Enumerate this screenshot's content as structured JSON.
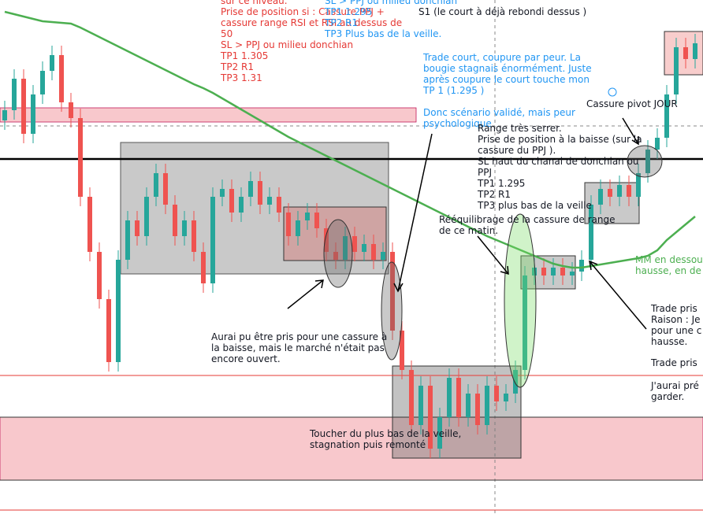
{
  "chart_data": {
    "type": "candlestick",
    "ylim": [
      0,
      653
    ],
    "open": [
      500,
      513,
      553,
      483,
      533,
      563,
      583,
      523,
      503,
      403,
      333,
      273,
      193,
      323,
      373,
      353,
      403,
      433,
      393,
      353,
      373,
      333,
      293,
      403,
      413,
      383,
      403,
      423,
      393,
      403,
      383,
      353,
      373,
      383,
      363,
      333,
      323,
      353,
      333,
      343,
      323,
      333,
      233,
      183,
      113,
      163,
      83,
      123,
      173,
      123,
      153,
      113,
      163,
      143,
      153,
      183,
      303,
      313,
      303,
      313,
      303,
      308,
      323,
      393,
      413,
      403,
      418,
      403,
      433,
      463,
      478,
      533,
      593,
      578
    ],
    "high": [
      525,
      565,
      565,
      545,
      575,
      595,
      595,
      535,
      515,
      415,
      345,
      285,
      335,
      385,
      385,
      415,
      445,
      445,
      405,
      385,
      385,
      345,
      415,
      425,
      425,
      415,
      435,
      435,
      415,
      415,
      395,
      385,
      395,
      395,
      375,
      345,
      365,
      365,
      355,
      355,
      345,
      345,
      245,
      195,
      175,
      175,
      135,
      185,
      185,
      165,
      165,
      175,
      175,
      165,
      195,
      315,
      325,
      325,
      325,
      325,
      320,
      335,
      405,
      425,
      425,
      430,
      430,
      445,
      475,
      490,
      545,
      605,
      605,
      610
    ],
    "low": [
      488,
      501,
      471,
      471,
      521,
      551,
      511,
      491,
      391,
      321,
      261,
      181,
      181,
      311,
      341,
      341,
      391,
      381,
      341,
      341,
      321,
      281,
      281,
      391,
      371,
      371,
      391,
      381,
      381,
      371,
      341,
      341,
      361,
      351,
      321,
      311,
      311,
      321,
      321,
      311,
      311,
      221,
      171,
      101,
      101,
      71,
      71,
      111,
      111,
      111,
      101,
      101,
      131,
      131,
      141,
      171,
      291,
      291,
      291,
      291,
      291,
      296,
      311,
      381,
      391,
      391,
      391,
      391,
      421,
      451,
      466,
      521,
      566,
      566
    ],
    "close": [
      513,
      553,
      483,
      533,
      563,
      583,
      523,
      503,
      403,
      333,
      273,
      193,
      323,
      373,
      353,
      403,
      433,
      393,
      353,
      373,
      333,
      293,
      403,
      413,
      383,
      403,
      423,
      393,
      403,
      383,
      353,
      373,
      383,
      363,
      333,
      323,
      353,
      333,
      343,
      323,
      333,
      233,
      183,
      113,
      163,
      83,
      123,
      173,
      123,
      153,
      113,
      163,
      143,
      153,
      183,
      303,
      313,
      303,
      313,
      303,
      308,
      323,
      393,
      413,
      403,
      418,
      403,
      433,
      463,
      478,
      533,
      593,
      578,
      598
    ],
    "up_color": "#26a69a",
    "down_color": "#ef5350",
    "moving_average": {
      "color": "#4caf50",
      "values": [
        638,
        635,
        632,
        629,
        626,
        625,
        624,
        623,
        618,
        612,
        606,
        600,
        594,
        588,
        582,
        576,
        570,
        564,
        558,
        552,
        546,
        541,
        535,
        528,
        521,
        514,
        507,
        500,
        493,
        486,
        479,
        473,
        467,
        461,
        455,
        449,
        443,
        437,
        431,
        425,
        419,
        413,
        407,
        401,
        395,
        389,
        383,
        377,
        371,
        365,
        359,
        353,
        348,
        343,
        338,
        333,
        328,
        323,
        318,
        315,
        313,
        313,
        315,
        317,
        319,
        321,
        323,
        325,
        328,
        335,
        348,
        358,
        368,
        378
      ]
    },
    "hlines": [
      {
        "value": 451,
        "color": "#000000"
      },
      {
        "value": 176,
        "color": "#e53935"
      },
      {
        "value": 123,
        "color": "#333333"
      },
      {
        "value": 43,
        "color": "#333333"
      },
      {
        "value": 5,
        "color": "#e53935"
      }
    ],
    "zones": [
      {
        "from": 498,
        "to": 516,
        "color": "#f8c8cc"
      },
      {
        "from": 43,
        "to": 123,
        "color": "#f8c8cc"
      }
    ],
    "annotations": [
      {
        "color": "#e53935",
        "lines": [
          "sur ce niveau.",
          "Prise de position si : Cassure PPJ +",
          "cassure range RSI et RSI au dessus de",
          "50",
          "SL > PPJ ou milieu donchian",
          "TP1 1.305",
          "TP2 R1",
          "TP3 1.31"
        ]
      },
      {
        "color": "#2196f3",
        "lines": [
          "SL > PPJ ou milieu donchian",
          "TP1 1.295",
          "TP2 R1",
          "TP3 Plus bas de la veille."
        ]
      },
      {
        "color": "#131722",
        "lines": [
          "S1 (le court à déjà rebondi dessus )"
        ]
      },
      {
        "color": "#2196f3",
        "lines": [
          "Trade court, coupure par peur. La",
          "bougie stagnais énormément. Juste",
          "après coupure le court touche mon",
          "TP 1 (1.295 )"
        ]
      },
      {
        "color": "#2196f3",
        "lines": [
          "Donc scénario validé, mais peur",
          "psychologique"
        ]
      },
      {
        "color": "#131722",
        "lines": [
          "Range très serrer.",
          "Prise de position à la baisse (sur la",
          "cassure du PPJ ).",
          "SL haut du chanal de donchian ou",
          "PPJ",
          "TP1 1.295",
          "TP2 R1",
          "TP3 plus bas de la veille"
        ]
      },
      {
        "color": "#131722",
        "lines": [
          "Cassure pivot JOUR"
        ]
      },
      {
        "color": "#131722",
        "lines": [
          "Rééquilibrage de la cassure de range",
          "de ce matin."
        ]
      },
      {
        "color": "#4caf50",
        "lines": [
          "MM en dessous",
          "hausse, en de"
        ]
      },
      {
        "color": "#131722",
        "lines": [
          "Aurai pu être pris pour une cassure à",
          "la baisse, mais le marché n'était pas",
          "encore ouvert."
        ]
      },
      {
        "color": "#131722",
        "lines": [
          "Trade pris",
          "Raison : Je",
          "pour une c",
          "hausse."
        ]
      },
      {
        "color": "#131722",
        "lines": [
          "Trade pris"
        ]
      },
      {
        "color": "#131722",
        "lines": [
          "J'aurai pré",
          "garder."
        ]
      },
      {
        "color": "#131722",
        "lines": [
          "Toucher du plus bas de la veille,",
          "stagnation puis remonté"
        ]
      }
    ]
  }
}
